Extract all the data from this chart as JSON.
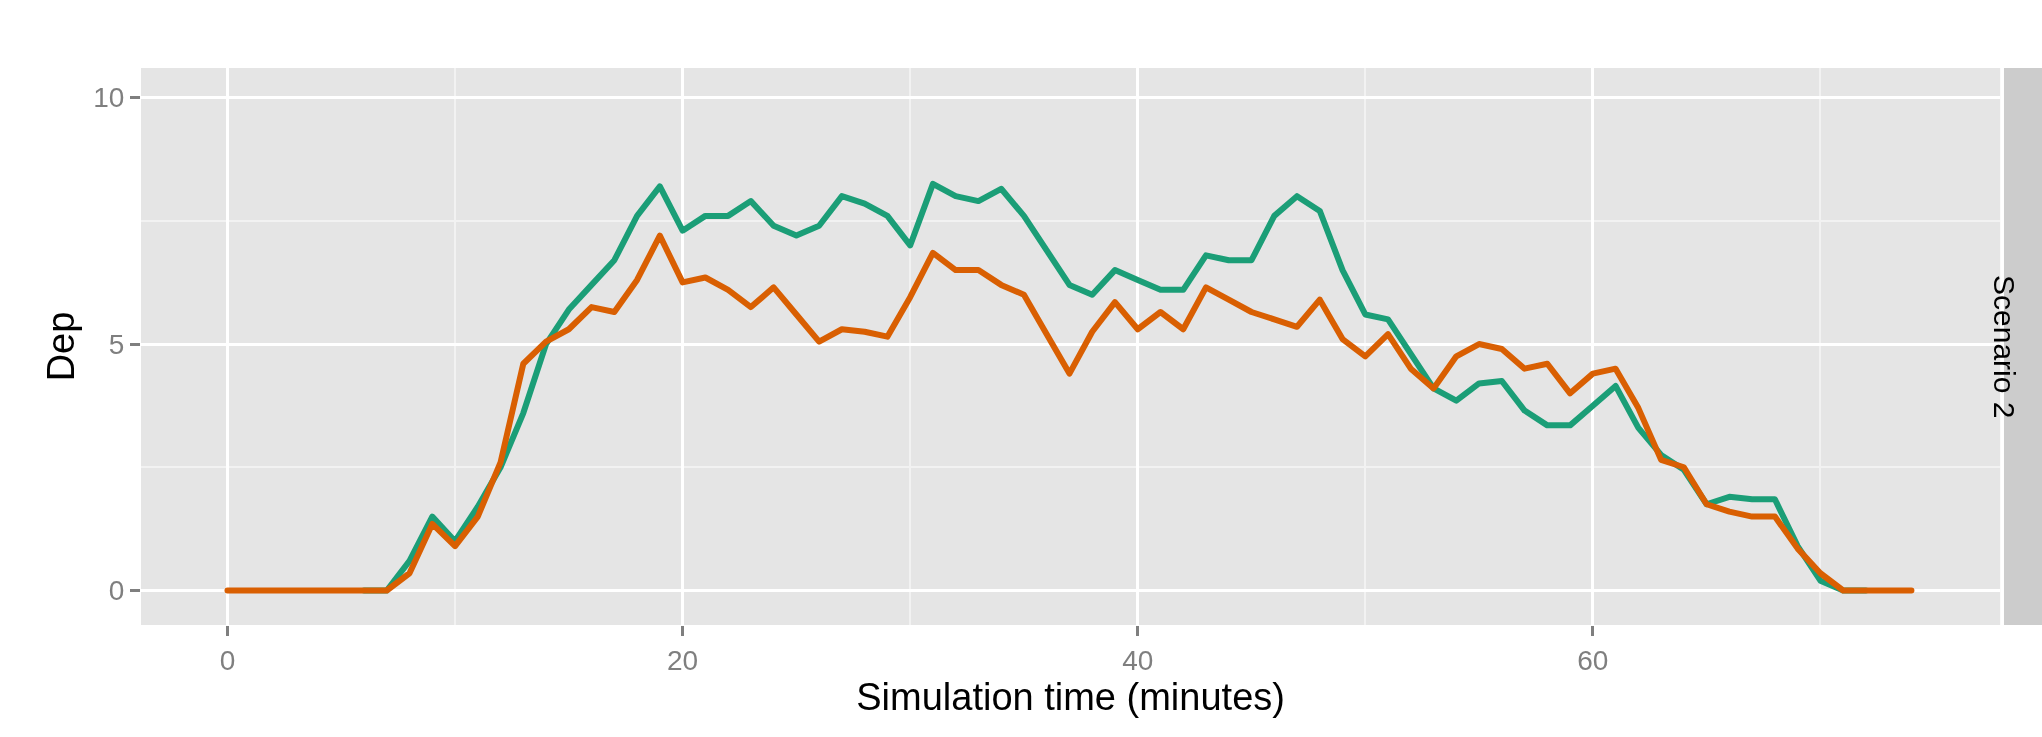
{
  "chart_data": {
    "type": "line",
    "xlabel": "Simulation time (minutes)",
    "ylabel": "Dep",
    "annotations": [
      "Scenario 2"
    ],
    "x": [
      0,
      1,
      2,
      3,
      4,
      5,
      6,
      7,
      8,
      9,
      10,
      11,
      12,
      13,
      14,
      15,
      16,
      17,
      18,
      19,
      20,
      21,
      22,
      23,
      24,
      25,
      26,
      27,
      28,
      29,
      30,
      31,
      32,
      33,
      34,
      35,
      36,
      37,
      38,
      39,
      40,
      41,
      42,
      43,
      44,
      45,
      46,
      47,
      48,
      49,
      50,
      51,
      52,
      53,
      54,
      55,
      56,
      57,
      58,
      59,
      60,
      61,
      62,
      63,
      64,
      65,
      66,
      67,
      68,
      69,
      70,
      71,
      72,
      73,
      74
    ],
    "series": [
      {
        "color": "#1b9e77",
        "values": [
          null,
          null,
          null,
          null,
          null,
          null,
          0,
          0,
          0.6,
          1.5,
          1.0,
          1.7,
          2.5,
          3.6,
          5.0,
          5.7,
          6.2,
          6.7,
          7.6,
          8.2,
          7.3,
          7.6,
          7.6,
          7.9,
          7.4,
          7.2,
          7.4,
          8.0,
          7.85,
          7.6,
          7.0,
          8.25,
          8.0,
          7.9,
          8.15,
          7.6,
          6.9,
          6.2,
          6.0,
          6.5,
          6.3,
          6.1,
          6.1,
          6.8,
          6.7,
          6.7,
          7.6,
          8.0,
          7.7,
          6.5,
          5.6,
          5.5,
          4.8,
          4.1,
          3.85,
          4.2,
          4.25,
          3.65,
          3.35,
          3.35,
          3.75,
          4.15,
          3.3,
          2.75,
          2.45,
          1.75,
          1.9,
          1.85,
          1.85,
          0.9,
          0.2,
          0,
          0,
          null,
          null
        ]
      },
      {
        "color": "#d95f02",
        "values": [
          0,
          0,
          0,
          0,
          0,
          0,
          0,
          0,
          0.35,
          1.35,
          0.9,
          1.5,
          2.6,
          4.6,
          5.05,
          5.3,
          5.75,
          5.65,
          6.3,
          7.2,
          6.25,
          6.35,
          6.1,
          5.75,
          6.15,
          5.6,
          5.05,
          5.3,
          5.25,
          5.15,
          5.95,
          6.85,
          6.5,
          6.5,
          6.2,
          6.0,
          5.2,
          4.4,
          5.25,
          5.85,
          5.3,
          5.65,
          5.3,
          6.15,
          5.9,
          5.65,
          5.5,
          5.35,
          5.9,
          5.1,
          4.75,
          5.2,
          4.5,
          4.1,
          4.75,
          5.0,
          4.9,
          4.5,
          4.6,
          4.0,
          4.4,
          4.5,
          3.7,
          2.65,
          2.5,
          1.75,
          1.6,
          1.5,
          1.5,
          0.85,
          0.35,
          0,
          0,
          0,
          0
        ]
      }
    ],
    "xlim": [
      -3.8,
      77.9
    ],
    "ylim": [
      -0.7,
      10.6
    ],
    "xticks": [
      0,
      20,
      40,
      60
    ],
    "yticks": [
      0,
      5,
      10
    ],
    "grid": true,
    "line_style": "solid"
  }
}
